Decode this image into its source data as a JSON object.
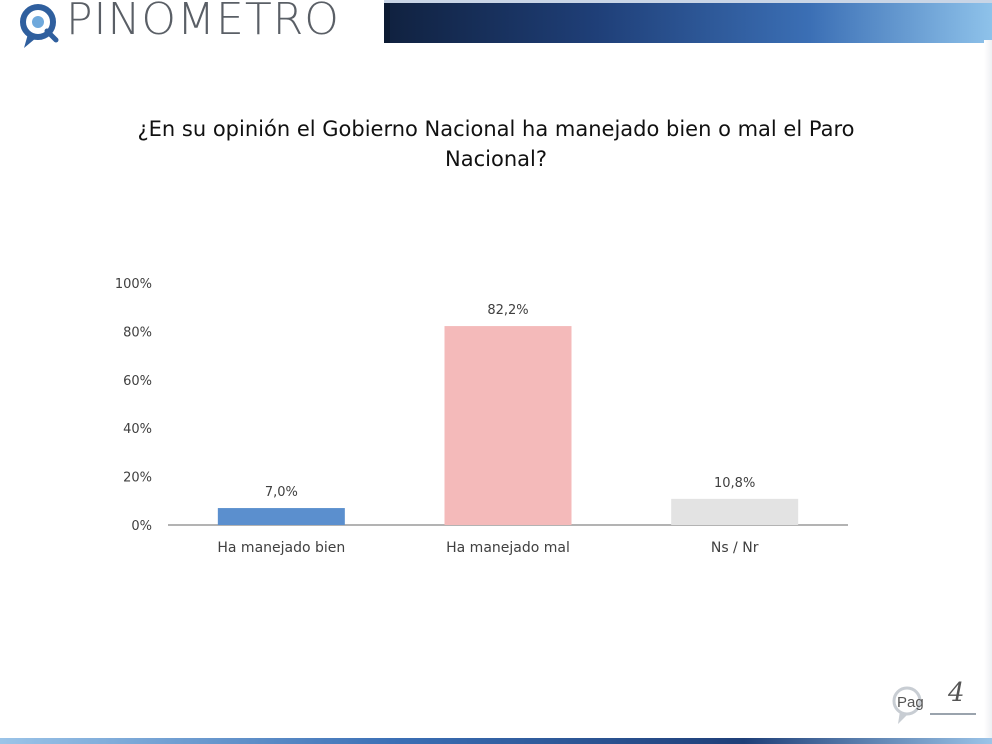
{
  "brand": {
    "name": "PINOMETRO",
    "logo_icon": "magnifier-pin-icon"
  },
  "colors": {
    "bar_bien": "#5b8fce",
    "bar_mal": "#f4baba",
    "bar_nsnr": "#e3e3e3",
    "axis": "#9a9a9a"
  },
  "chart_data": {
    "type": "bar",
    "title": "¿En su opinión el Gobierno Nacional ha manejado bien o mal el Paro Nacional?",
    "categories": [
      "Ha manejado bien",
      "Ha manejado mal",
      "Ns / Nr"
    ],
    "values": [
      7.0,
      82.2,
      10.8
    ],
    "data_labels": [
      "7,0%",
      "82,2%",
      "10,8%"
    ],
    "yticks": [
      "0%",
      "20%",
      "40%",
      "60%",
      "80%",
      "100%"
    ],
    "ylim": [
      0,
      100
    ],
    "grid": false,
    "legend": "none"
  },
  "footer": {
    "page_label": "Pag",
    "page_number": "4"
  }
}
